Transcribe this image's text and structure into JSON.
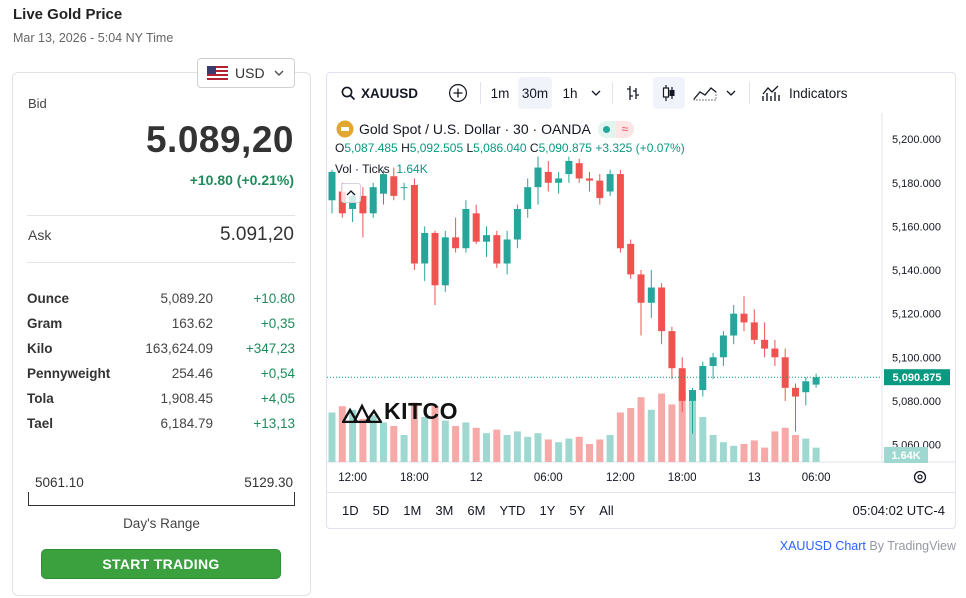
{
  "header": {
    "title": "Live Gold Price",
    "subtitle": "Mar 13, 2026 - 5:04 NY Time"
  },
  "quote": {
    "currency": "USD",
    "bid_label": "Bid",
    "bid_value": "5.089,20",
    "bid_change": "+10.80 (+0.21%)",
    "ask_label": "Ask",
    "ask_value": "5.091,20"
  },
  "units": [
    {
      "name": "Ounce",
      "price": "5,089.20",
      "change": "+10.80"
    },
    {
      "name": "Gram",
      "price": "163.62",
      "change": "+0,35"
    },
    {
      "name": "Kilo",
      "price": "163,624.09",
      "change": "+347,23"
    },
    {
      "name": "Pennyweight",
      "price": "254.46",
      "change": "+0,54"
    },
    {
      "name": "Tola",
      "price": "1,908.45",
      "change": "+4,05"
    },
    {
      "name": "Tael",
      "price": "6,184.79",
      "change": "+13,13"
    }
  ],
  "day_range": {
    "low": "5061.10",
    "high": "5129.30",
    "label": "Day's Range"
  },
  "trade_button": "START TRADING",
  "chart": {
    "symbol": "XAUUSD",
    "intervals": [
      "1m",
      "30m",
      "1h"
    ],
    "active_interval": "30m",
    "indicators_label": "Indicators",
    "legend_title": "Gold Spot / U.S. Dollar · 30 · OANDA",
    "ohlc": {
      "o_label": "O",
      "o": "5,087.485",
      "h_label": "H",
      "h": "5,092.505",
      "l_label": "L",
      "l": "5,086.040",
      "c_label": "C",
      "c": "5,090.875",
      "change": "+3.325 (+0.07%)"
    },
    "vol_label": "Vol · Ticks",
    "vol_value": "1.64K",
    "watermark": "KITCO",
    "ranges": [
      "1D",
      "5D",
      "1M",
      "3M",
      "6M",
      "YTD",
      "1Y",
      "5Y",
      "All"
    ],
    "clock": "05:04:02 UTC-4",
    "attribution_link": "XAUUSD Chart",
    "attribution_by": " By TradingView",
    "colors": {
      "up": "#26a69a",
      "down": "#ef5350",
      "vol_up": "#9ed8d0",
      "vol_down": "#f6a9a7",
      "last_price": "#089981"
    }
  },
  "chart_data": {
    "type": "candlestick",
    "title": "Gold Spot / U.S. Dollar · 30 · OANDA",
    "y_ticks": [
      "5,200.000",
      "5,180.000",
      "5,160.000",
      "5,140.000",
      "5,120.000",
      "5,100.000",
      "5,080.000",
      "5,060.000"
    ],
    "y_tick_values": [
      5200,
      5180,
      5160,
      5140,
      5120,
      5100,
      5080,
      5060
    ],
    "x_ticks": [
      "12:00",
      "18:00",
      "12",
      "06:00",
      "12:00",
      "18:00",
      "13",
      "06:00"
    ],
    "x_tick_bar_index": [
      2,
      8,
      14,
      21,
      28,
      34,
      41,
      47
    ],
    "ylim": [
      5052,
      5212
    ],
    "last_price": 5090.875,
    "last_price_label": "5,090.875",
    "volume_label": "1.64K",
    "candles": [
      {
        "o": 5172,
        "h": 5186,
        "l": 5166,
        "c": 5185,
        "v": 0.55
      },
      {
        "o": 5176,
        "h": 5180,
        "l": 5164,
        "c": 5166,
        "v": 0.62
      },
      {
        "o": 5168,
        "h": 5176,
        "l": 5162,
        "c": 5174,
        "v": 0.58
      },
      {
        "o": 5174,
        "h": 5178,
        "l": 5155,
        "c": 5166,
        "v": 0.48
      },
      {
        "o": 5166,
        "h": 5180,
        "l": 5164,
        "c": 5178,
        "v": 0.52
      },
      {
        "o": 5175,
        "h": 5186,
        "l": 5170,
        "c": 5184,
        "v": 0.44
      },
      {
        "o": 5183,
        "h": 5187,
        "l": 5172,
        "c": 5174,
        "v": 0.4
      },
      {
        "o": 5178,
        "h": 5180,
        "l": 5172,
        "c": 5178,
        "v": 0.3
      },
      {
        "o": 5179,
        "h": 5182,
        "l": 5140,
        "c": 5143,
        "v": 0.66
      },
      {
        "o": 5143,
        "h": 5160,
        "l": 5135,
        "c": 5157,
        "v": 0.5
      },
      {
        "o": 5157,
        "h": 5158,
        "l": 5124,
        "c": 5133,
        "v": 0.62
      },
      {
        "o": 5133,
        "h": 5158,
        "l": 5130,
        "c": 5155,
        "v": 0.46
      },
      {
        "o": 5155,
        "h": 5164,
        "l": 5148,
        "c": 5150,
        "v": 0.4
      },
      {
        "o": 5150,
        "h": 5172,
        "l": 5148,
        "c": 5168,
        "v": 0.44
      },
      {
        "o": 5166,
        "h": 5170,
        "l": 5152,
        "c": 5153,
        "v": 0.38
      },
      {
        "o": 5153,
        "h": 5160,
        "l": 5146,
        "c": 5156,
        "v": 0.32
      },
      {
        "o": 5156,
        "h": 5158,
        "l": 5141,
        "c": 5143,
        "v": 0.36
      },
      {
        "o": 5143,
        "h": 5158,
        "l": 5138,
        "c": 5154,
        "v": 0.3
      },
      {
        "o": 5154,
        "h": 5170,
        "l": 5150,
        "c": 5168,
        "v": 0.34
      },
      {
        "o": 5168,
        "h": 5182,
        "l": 5164,
        "c": 5178,
        "v": 0.28
      },
      {
        "o": 5178,
        "h": 5192,
        "l": 5170,
        "c": 5187,
        "v": 0.32
      },
      {
        "o": 5185,
        "h": 5190,
        "l": 5176,
        "c": 5180,
        "v": 0.25
      },
      {
        "o": 5180,
        "h": 5185,
        "l": 5175,
        "c": 5182,
        "v": 0.22
      },
      {
        "o": 5184,
        "h": 5192,
        "l": 5180,
        "c": 5190,
        "v": 0.26
      },
      {
        "o": 5189,
        "h": 5191,
        "l": 5180,
        "c": 5182,
        "v": 0.28
      },
      {
        "o": 5182,
        "h": 5185,
        "l": 5176,
        "c": 5181,
        "v": 0.2
      },
      {
        "o": 5181,
        "h": 5184,
        "l": 5170,
        "c": 5173,
        "v": 0.25
      },
      {
        "o": 5176,
        "h": 5186,
        "l": 5174,
        "c": 5184,
        "v": 0.3
      },
      {
        "o": 5184,
        "h": 5186,
        "l": 5148,
        "c": 5150,
        "v": 0.55
      },
      {
        "o": 5152,
        "h": 5154,
        "l": 5136,
        "c": 5138,
        "v": 0.6
      },
      {
        "o": 5138,
        "h": 5140,
        "l": 5110,
        "c": 5125,
        "v": 0.72
      },
      {
        "o": 5125,
        "h": 5140,
        "l": 5118,
        "c": 5132,
        "v": 0.58
      },
      {
        "o": 5132,
        "h": 5134,
        "l": 5106,
        "c": 5112,
        "v": 0.76
      },
      {
        "o": 5112,
        "h": 5114,
        "l": 5090,
        "c": 5095,
        "v": 0.64
      },
      {
        "o": 5095,
        "h": 5100,
        "l": 5075,
        "c": 5080,
        "v": 0.8
      },
      {
        "o": 5080,
        "h": 5086,
        "l": 5065,
        "c": 5085,
        "v": 0.7
      },
      {
        "o": 5085,
        "h": 5098,
        "l": 5082,
        "c": 5096,
        "v": 0.5
      },
      {
        "o": 5096,
        "h": 5102,
        "l": 5090,
        "c": 5100,
        "v": 0.3
      },
      {
        "o": 5100,
        "h": 5112,
        "l": 5096,
        "c": 5110,
        "v": 0.22
      },
      {
        "o": 5110,
        "h": 5124,
        "l": 5106,
        "c": 5120,
        "v": 0.18
      },
      {
        "o": 5120,
        "h": 5128,
        "l": 5112,
        "c": 5116,
        "v": 0.2
      },
      {
        "o": 5116,
        "h": 5122,
        "l": 5106,
        "c": 5108,
        "v": 0.24
      },
      {
        "o": 5108,
        "h": 5116,
        "l": 5100,
        "c": 5104,
        "v": 0.16
      },
      {
        "o": 5104,
        "h": 5108,
        "l": 5096,
        "c": 5100,
        "v": 0.34
      },
      {
        "o": 5100,
        "h": 5104,
        "l": 5080,
        "c": 5086,
        "v": 0.38
      },
      {
        "o": 5086,
        "h": 5088,
        "l": 5066,
        "c": 5082,
        "v": 0.3
      },
      {
        "o": 5084,
        "h": 5091,
        "l": 5078,
        "c": 5089,
        "v": 0.26
      },
      {
        "o": 5087.485,
        "h": 5092.505,
        "l": 5086.04,
        "c": 5090.875,
        "v": 0.16
      }
    ]
  }
}
